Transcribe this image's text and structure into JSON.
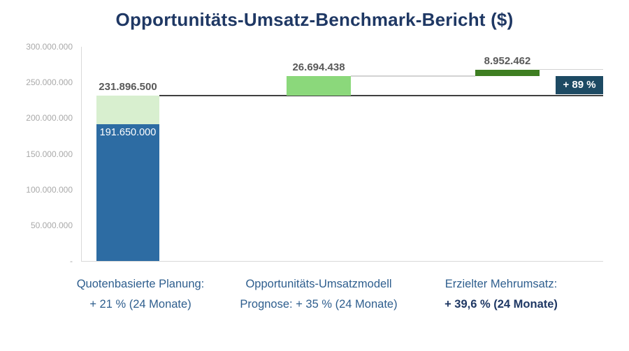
{
  "title": "Opportunitäts-Umsatz-Benchmark-Bericht ($)",
  "chart_data": {
    "type": "bar",
    "subtype": "waterfall",
    "title": "Opportunitäts-Umsatz-Benchmark-Bericht ($)",
    "grid": false,
    "legend": false,
    "y_axis": {
      "min": 0,
      "max": 300000000,
      "step": 50000000,
      "labels": [
        "300.000.000",
        "250.000.000",
        "200.000.000",
        "150.000.000",
        "100.000.000",
        "50.000.000",
        "-"
      ]
    },
    "base_bar": {
      "value": 191650000,
      "label": "191.650.000",
      "color": "#2d6ca3",
      "label_color": "#ffffff"
    },
    "steps": [
      {
        "start": 191650000,
        "end": 231896500,
        "delta": 40246500,
        "label": "231.896.500",
        "label_is_total": true,
        "color": "#d8efcf",
        "connector": "dark"
      },
      {
        "start": 231896500,
        "end": 258590938,
        "delta": 26694438,
        "label": "26.694.438",
        "label_is_total": false,
        "color": "#8bd87b",
        "connector": "light"
      },
      {
        "start": 258590938,
        "end": 267543400,
        "delta": 8952462,
        "label": "8.952.462",
        "label_is_total": false,
        "color": "#3e7e22",
        "connector": "light"
      }
    ],
    "badge": {
      "label": "+ 89 %",
      "bg": "#1d4a63",
      "text_color": "#ffffff",
      "top_value": 258590938,
      "bottom_value": 231896500
    },
    "categories": [
      {
        "line1": "Quotenbasierte Planung:",
        "line2": "+ 21 % (24 Monate)",
        "bold2": false
      },
      {
        "line1": "Opportunitäts-Umsatzmodell",
        "line2": "Prognose: + 35 % (24 Monate)",
        "bold2": false
      },
      {
        "line1": "Erzielter Mehrumsatz:",
        "line2": "+ 39,6 % (24 Monate)",
        "bold2": true
      }
    ],
    "colors": {
      "title": "#1f3864",
      "axis_label": "#a9a9a9",
      "value_label": "#595959",
      "category_label": "#2e5e8e",
      "category_label_bold": "#1f3864",
      "connector_dark": "#404040",
      "connector_light": "#d2d2d2",
      "axis_line": "#d9d9d9",
      "background": "#ffffff"
    }
  }
}
